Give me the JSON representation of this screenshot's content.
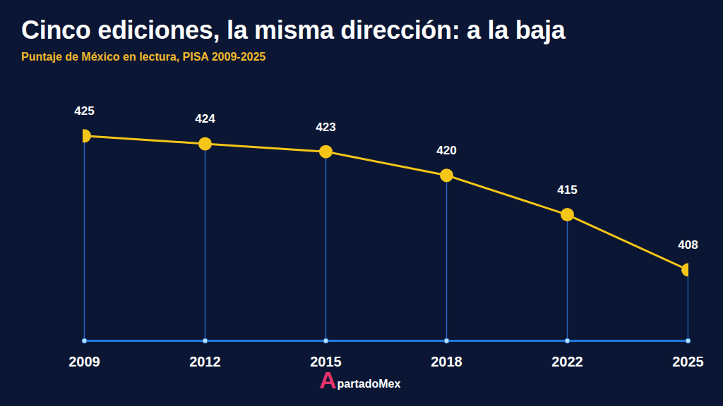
{
  "chart_data": {
    "type": "line",
    "title": "Cinco ediciones, la misma dirección: a la baja",
    "subtitle": "Puntaje de México en lectura, PISA 2009-2025",
    "source": "ApartadoMex",
    "categories": [
      "2009",
      "2012",
      "2015",
      "2018",
      "2022",
      "2025"
    ],
    "values": [
      425,
      424,
      423,
      420,
      415,
      408
    ],
    "color": "#f5c518",
    "marker": "circle",
    "ylim": [
      399,
      432
    ],
    "grid": false,
    "data_labels": true,
    "tick_labels": "x"
  }
}
